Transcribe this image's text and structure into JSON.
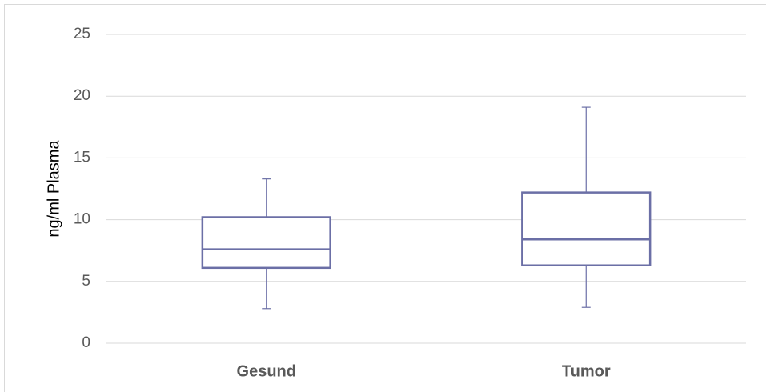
{
  "chart_data": {
    "type": "box",
    "y_label": "ng/ml Plasma",
    "categories": [
      "Gesund",
      "Tumor"
    ],
    "min": [
      2.8,
      2.9
    ],
    "q1": [
      6.1,
      6.3
    ],
    "median": [
      7.6,
      8.4
    ],
    "q3": [
      10.2,
      12.2
    ],
    "max": [
      13.3,
      19.1
    ],
    "color": "#6b6fa6",
    "ylim": [
      0,
      25
    ],
    "yticks": [
      0,
      5,
      10,
      15,
      20,
      25
    ],
    "grid": true
  }
}
